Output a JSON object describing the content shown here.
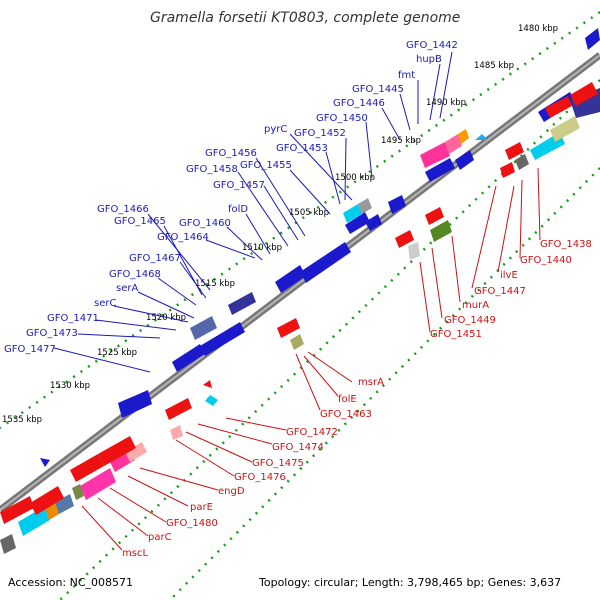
{
  "title": "Gramella forsetii KT0803, complete genome",
  "footer": {
    "accession": "Accession: NC_008571",
    "stats": "Topology: circular; Length: 3,798,465 bp; Genes: 3,637"
  },
  "colors": {
    "forward_strand": "#0000cc",
    "reverse_strand": "#cc0000",
    "backbone": "#808080",
    "tick_green": "#1a9a1a"
  },
  "kbp_ticks": [
    "1480 kbp",
    "1485 kbp",
    "1490 kbp",
    "1495 kbp",
    "1500 kbp",
    "1505 kbp",
    "1510 kbp",
    "1515 kbp",
    "1520 kbp",
    "1525 kbp",
    "1530 kbp",
    "1535 kbp"
  ],
  "upper_labels": [
    "GFO_1442",
    "hupB",
    "fmt",
    "GFO_1445",
    "GFO_1446",
    "GFO_1450",
    "pyrC",
    "GFO_1452",
    "GFO_1453",
    "GFO_1456",
    "GFO_1455",
    "GFO_1458",
    "GFO_1457",
    "folD",
    "GFO_1460",
    "GFO_1466",
    "GFO_1465",
    "GFO_1464",
    "GFO_1467",
    "GFO_1468",
    "serA",
    "serC",
    "GFO_1471",
    "GFO_1473",
    "GFO_1477"
  ],
  "lower_labels": [
    "GFO_1438",
    "GFO_1440",
    "ilvE",
    "GFO_1447",
    "murA",
    "GFO_1449",
    "GFO_1451",
    "msrA",
    "folE",
    "GFO_1463",
    "GFO_1472",
    "GFO_1474",
    "GFO_1475",
    "GFO_1476",
    "engD",
    "parE",
    "GFO_1480",
    "parC",
    "mscL"
  ]
}
